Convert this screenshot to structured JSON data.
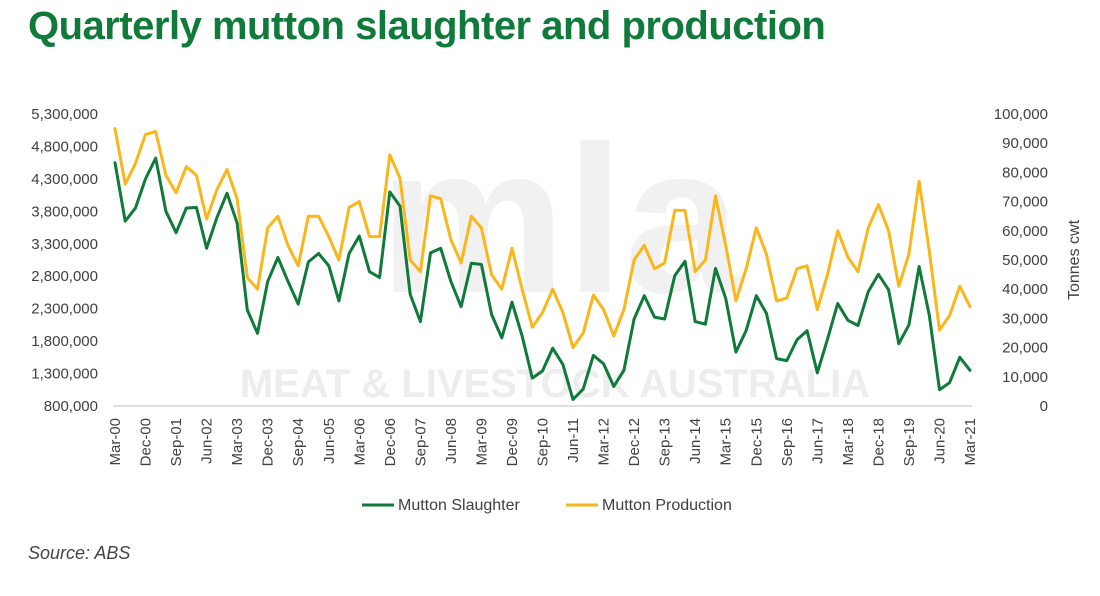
{
  "title": "Quarterly mutton slaughter and production",
  "source": "Source: ABS",
  "watermark": {
    "logo_text": "mla",
    "text": "MEAT & LIVESTOCK AUSTRALIA"
  },
  "colors": {
    "title": "#0f7a3a",
    "slaughter": "#0f7a3a",
    "production": "#fbb61b",
    "watermark": "#e5e5e5"
  },
  "chart_data": {
    "type": "line",
    "title": "",
    "xlabel": "",
    "ylabel_left": "",
    "ylabel_right": "Tonnes cwt",
    "grid": false,
    "legend_position": "bottom",
    "y_left": {
      "min": 800000,
      "max": 5300000,
      "ticks": [
        "5,300,000",
        "4,800,000",
        "4,300,000",
        "3,800,000",
        "3,300,000",
        "2,800,000",
        "2,300,000",
        "1,800,000",
        "1,300,000",
        "800,000"
      ]
    },
    "y_right": {
      "min": 0,
      "max": 100000,
      "ticks": [
        "100,000",
        "90,000",
        "80,000",
        "70,000",
        "60,000",
        "50,000",
        "40,000",
        "30,000",
        "20,000",
        "10,000",
        "0"
      ]
    },
    "x_tick_labels": [
      "Mar-00",
      "Dec-00",
      "Sep-01",
      "Jun-02",
      "Mar-03",
      "Dec-03",
      "Sep-04",
      "Jun-05",
      "Mar-06",
      "Dec-06",
      "Sep-07",
      "Jun-08",
      "Mar-09",
      "Dec-09",
      "Sep-10",
      "Jun-11",
      "Mar-12",
      "Dec-12",
      "Sep-13",
      "Jun-14",
      "Mar-15",
      "Dec-15",
      "Sep-16",
      "Jun-17",
      "Mar-18",
      "Dec-18",
      "Sep-19",
      "Jun-20",
      "Mar-21"
    ],
    "x_start": "Mar-00",
    "x_end": "Mar-21",
    "series": [
      {
        "name": "Mutton Slaughter",
        "axis": "left",
        "color": "#0f7a3a",
        "values": [
          4550000,
          3650000,
          3850000,
          4300000,
          4620000,
          3800000,
          3470000,
          3850000,
          3860000,
          3230000,
          3700000,
          4080000,
          3620000,
          2280000,
          1920000,
          2720000,
          3090000,
          2720000,
          2370000,
          3020000,
          3150000,
          2960000,
          2420000,
          3150000,
          3420000,
          2870000,
          2780000,
          4100000,
          3880000,
          2520000,
          2100000,
          3160000,
          3230000,
          2720000,
          2330000,
          3000000,
          2980000,
          2210000,
          1850000,
          2400000,
          1880000,
          1230000,
          1340000,
          1690000,
          1440000,
          900000,
          1060000,
          1580000,
          1450000,
          1100000,
          1350000,
          2140000,
          2500000,
          2170000,
          2140000,
          2810000,
          3030000,
          2100000,
          2060000,
          2920000,
          2460000,
          1630000,
          1960000,
          2500000,
          2230000,
          1530000,
          1500000,
          1820000,
          1960000,
          1310000,
          1830000,
          2380000,
          2120000,
          2040000,
          2560000,
          2830000,
          2590000,
          1760000,
          2050000,
          2950000,
          2200000,
          1050000,
          1160000,
          1550000,
          1350000
        ]
      },
      {
        "name": "Mutton Production",
        "axis": "right",
        "color": "#fbb61b",
        "values": [
          95000,
          76000,
          83000,
          93000,
          94000,
          79000,
          73000,
          82000,
          79000,
          64000,
          74000,
          81000,
          71000,
          44000,
          40000,
          61000,
          65000,
          55000,
          48000,
          65000,
          65000,
          58000,
          50000,
          68000,
          70000,
          58000,
          58000,
          86000,
          78000,
          50000,
          46000,
          72000,
          71000,
          57000,
          49000,
          65000,
          61000,
          45000,
          40000,
          54000,
          40000,
          27000,
          32000,
          40000,
          32000,
          20000,
          25000,
          38000,
          33000,
          24000,
          33000,
          50000,
          55000,
          47000,
          49000,
          67000,
          67000,
          46000,
          50000,
          72000,
          55000,
          36000,
          47000,
          61000,
          52000,
          36000,
          37000,
          47000,
          48000,
          33000,
          45000,
          60000,
          51000,
          46000,
          61000,
          69000,
          60000,
          41000,
          52000,
          77000,
          53000,
          26000,
          31000,
          41000,
          34000
        ]
      }
    ]
  }
}
